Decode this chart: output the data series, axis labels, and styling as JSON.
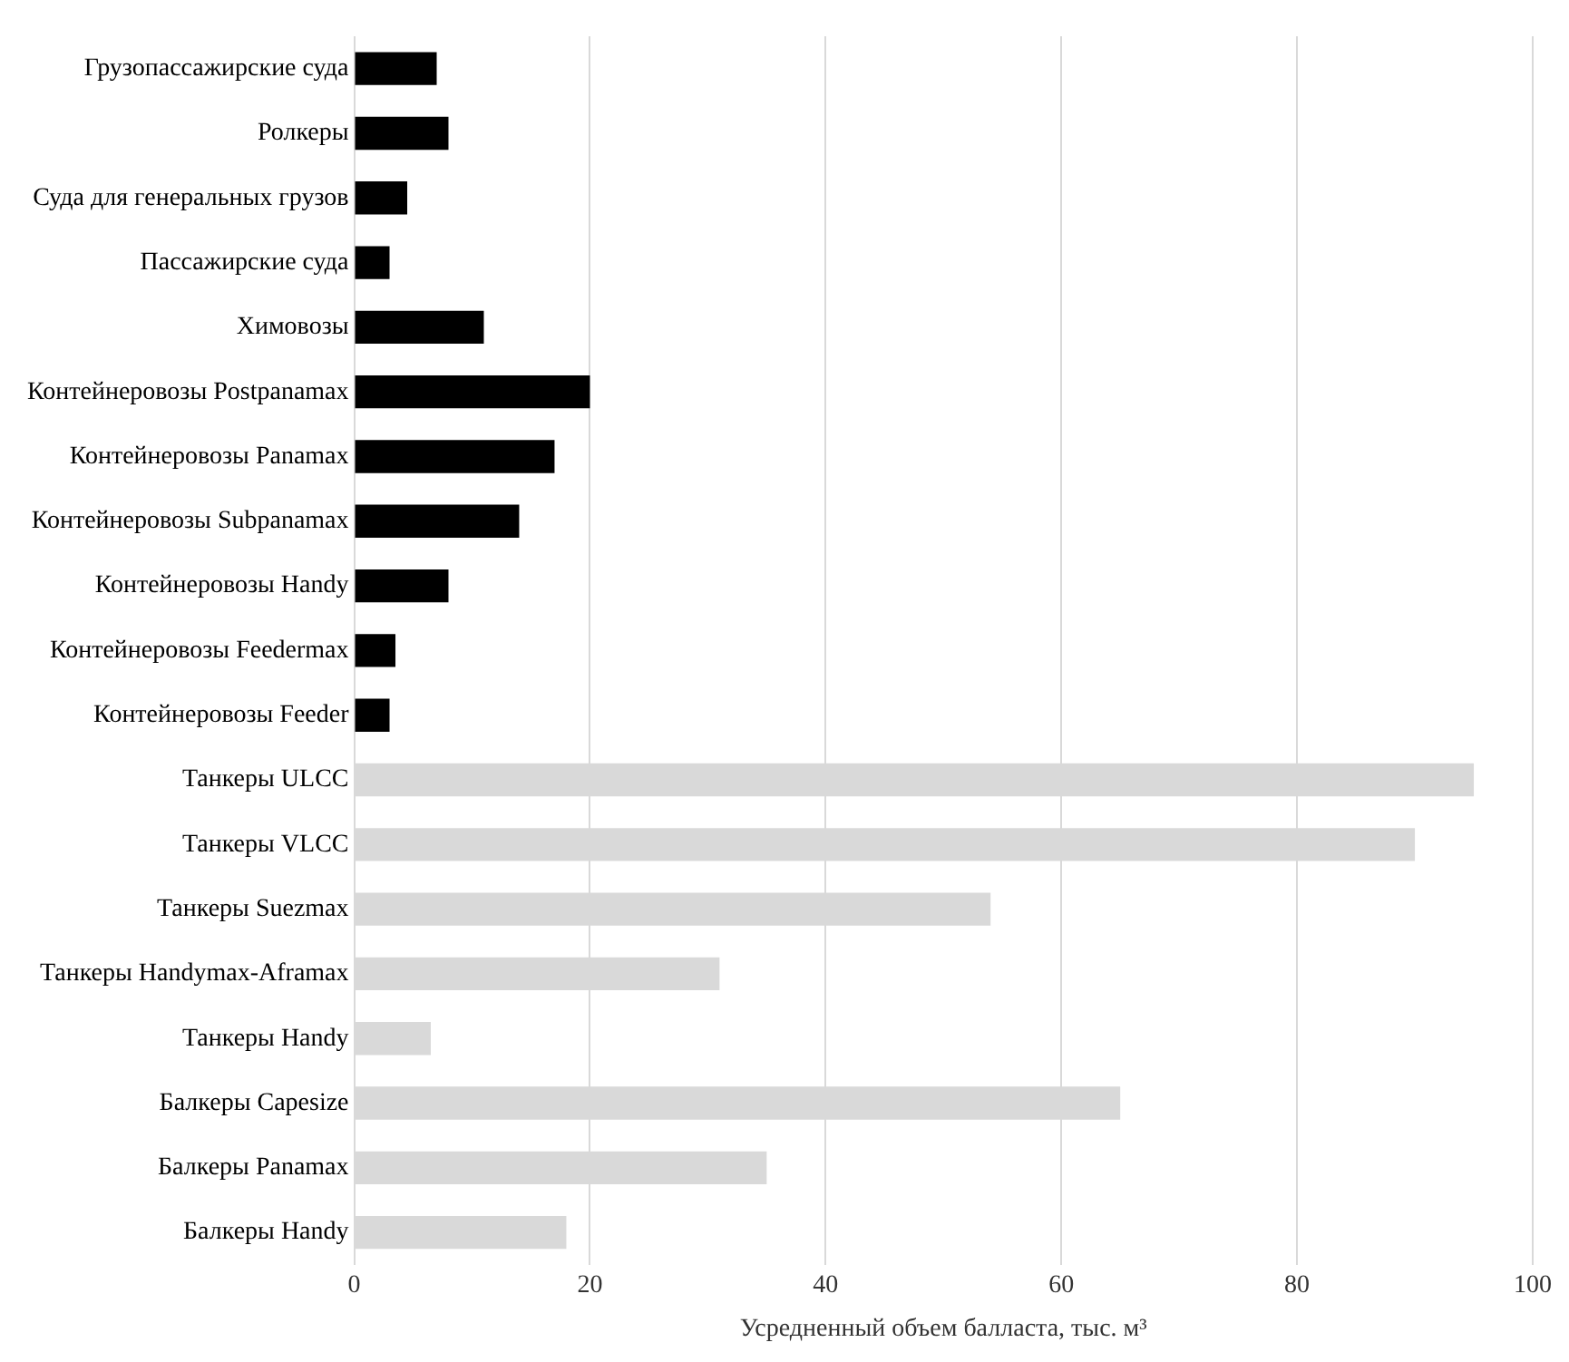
{
  "chart_data": {
    "type": "bar",
    "orientation": "horizontal",
    "categories": [
      "Грузопассажирские суда",
      "Ролкеры",
      "Суда для генеральных грузов",
      "Пассажирские суда",
      "Химовозы",
      "Контейнеровозы Postpanamax",
      "Контейнеровозы Panamax",
      "Контейнеровозы Subpanamax",
      "Контейнеровозы Handy",
      "Контейнеровозы Feedermax",
      "Контейнеровозы Feeder",
      "Танкеры ULCC",
      "Танкеры VLCC",
      "Танкеры Suezmax",
      "Танкеры Handymax-Aframax",
      "Танкеры Handy",
      "Балкеры Capesize",
      "Балкеры Panamax",
      "Балкеры Handy"
    ],
    "values": [
      7,
      8,
      4.5,
      3,
      11,
      20,
      17,
      14,
      8,
      3.5,
      3,
      95,
      90,
      54,
      31,
      6.5,
      65,
      35,
      18
    ],
    "colors": [
      "#000000",
      "#000000",
      "#000000",
      "#000000",
      "#000000",
      "#000000",
      "#000000",
      "#000000",
      "#000000",
      "#000000",
      "#000000",
      "#d9d9d9",
      "#d9d9d9",
      "#d9d9d9",
      "#d9d9d9",
      "#d9d9d9",
      "#d9d9d9",
      "#d9d9d9",
      "#d9d9d9"
    ],
    "xlabel": "Усредненный объем балласта, тыс. м³",
    "xlim": [
      0,
      100
    ],
    "xticks": [
      0,
      20,
      40,
      60,
      80,
      100
    ],
    "grid": "x",
    "legend": false
  }
}
